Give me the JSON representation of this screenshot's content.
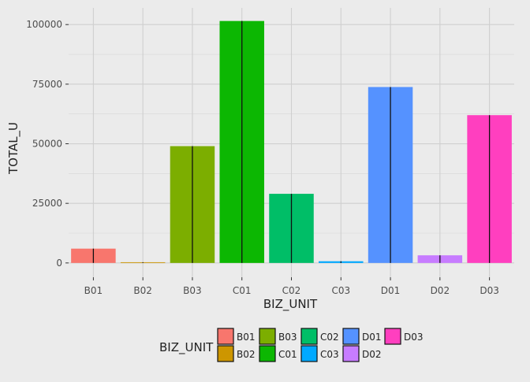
{
  "chart_data": {
    "type": "bar",
    "xlabel": "BIZ_UNIT",
    "ylabel": "TOTAL_U",
    "ylim": [
      -6000,
      107000
    ],
    "yticks": [
      0,
      25000,
      50000,
      75000,
      100000
    ],
    "grid": true,
    "categories": [
      "B01",
      "B02",
      "B03",
      "C01",
      "C02",
      "C03",
      "D01",
      "D02",
      "D03"
    ],
    "values": [
      6000,
      300,
      49000,
      101500,
      29000,
      700,
      73800,
      3200,
      62000
    ],
    "colors": [
      "#F8766D",
      "#CD9600",
      "#7CAE00",
      "#0CB702",
      "#00BE67",
      "#00A9FF",
      "#5592FF",
      "#C77CFF",
      "#FF3FBF"
    ],
    "legend": {
      "title": "BIZ_UNIT",
      "position": "bottom",
      "entries": [
        "B01",
        "B02",
        "B03",
        "C01",
        "C02",
        "C03",
        "D01",
        "D02",
        "D03"
      ]
    }
  }
}
